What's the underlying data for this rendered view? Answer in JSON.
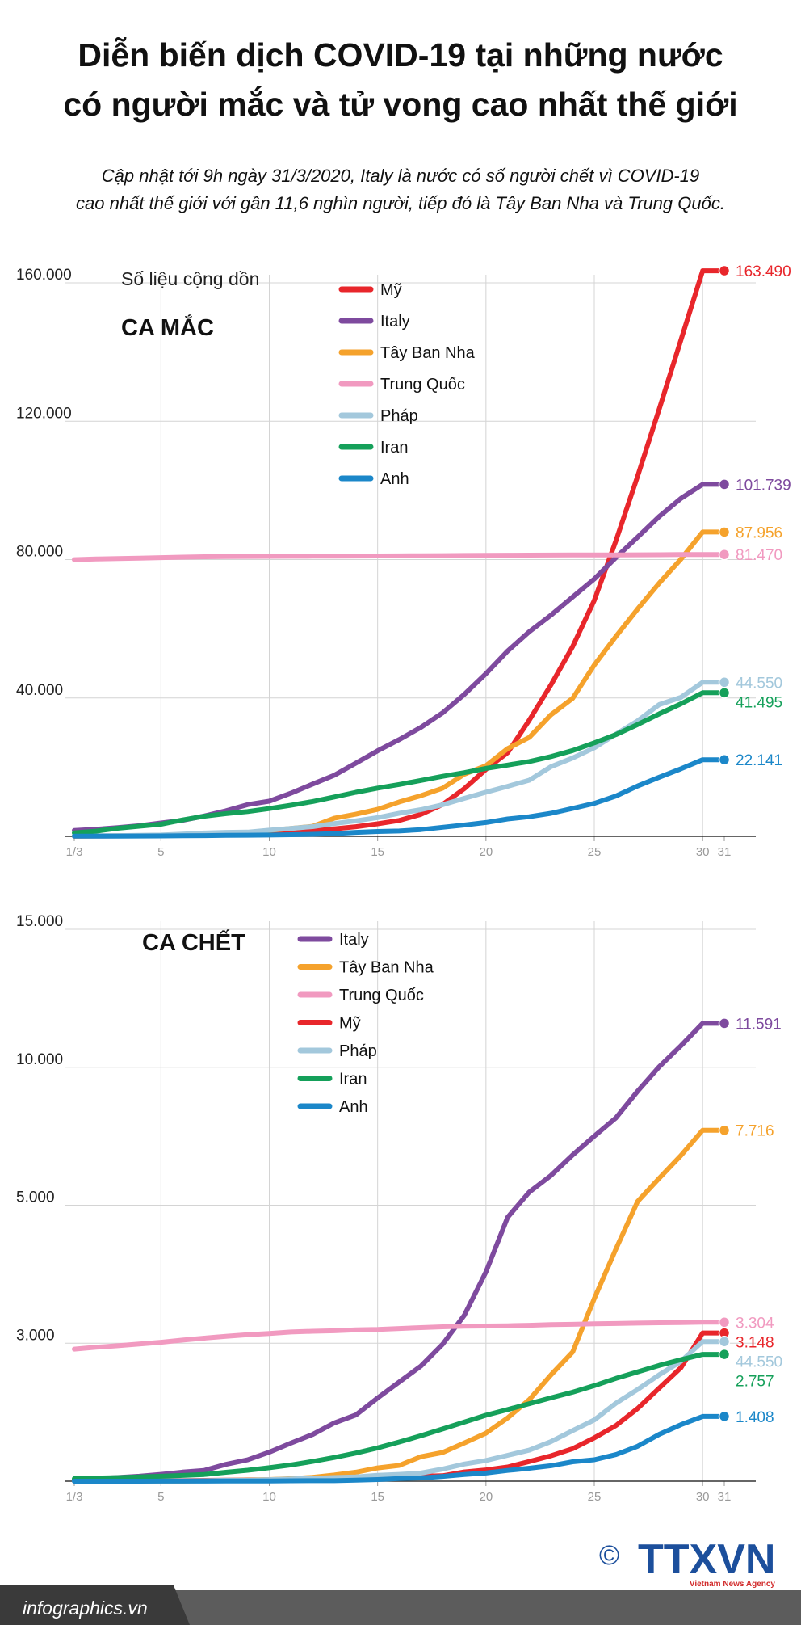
{
  "header": {
    "title_lines": [
      "Diễn biến dịch COVID-19 tại những nước",
      "có người mắc và tử vong cao nhất thế giới"
    ],
    "subtitle_lines": [
      "Cập nhật tới 9h ngày 31/3/2020,  Italy  là nước có số người chết vì COVID-19",
      "cao nhất thế giới với gần 11,6 nghìn người, tiếp đó là Tây Ban Nha và Trung Quốc."
    ]
  },
  "footer": {
    "site": "infographics.vn",
    "copyright": "©",
    "brand": "TTXVN",
    "agency": "Vietnam News Agency"
  },
  "chart_data": [
    {
      "type": "line",
      "note": "Số liệu cộng dồn",
      "title": "CA MẮC",
      "x": [
        1,
        2,
        3,
        4,
        5,
        6,
        7,
        8,
        9,
        10,
        11,
        12,
        13,
        14,
        15,
        16,
        17,
        18,
        19,
        20,
        21,
        22,
        23,
        24,
        25,
        26,
        27,
        28,
        29,
        30,
        31
      ],
      "xlim": [
        1,
        31
      ],
      "xticks": [
        {
          "value": 1,
          "label": "1/3"
        },
        5,
        10,
        15,
        20,
        25,
        30,
        31
      ],
      "ylim": [
        0,
        160000
      ],
      "yticks": [
        {
          "value": 40000,
          "label": "40.000"
        },
        {
          "value": 80000,
          "label": "80.000"
        },
        {
          "value": 120000,
          "label": "120.000"
        },
        {
          "value": 160000,
          "label": "160.000"
        }
      ],
      "grid": true,
      "series": [
        {
          "name": "Mỹ",
          "color": "#e8262b",
          "values": [
            75,
            100,
            124,
            158,
            221,
            319,
            435,
            541,
            704,
            994,
            1301,
            1630,
            2183,
            2770,
            3613,
            4596,
            6344,
            9197,
            13779,
            19367,
            24192,
            33592,
            43781,
            54856,
            68211,
            85435,
            104126,
            123578,
            143491,
            163490,
            163490
          ],
          "value_labels": [
            null,
            null,
            null,
            null,
            null,
            null,
            null,
            null,
            null,
            null,
            null,
            null,
            null,
            null,
            null,
            null,
            null,
            null,
            null,
            null,
            null,
            null,
            null,
            null,
            null,
            null,
            null,
            null,
            null,
            null,
            "163.490"
          ]
        },
        {
          "name": "Italy",
          "color": "#7e4a9e",
          "values": [
            1694,
            2036,
            2502,
            3089,
            3858,
            4636,
            5883,
            7375,
            9172,
            10149,
            12462,
            15113,
            17660,
            21157,
            24747,
            27980,
            31506,
            35713,
            41035,
            47021,
            53578,
            59138,
            63927,
            69176,
            74386,
            80589,
            86498,
            92472,
            97689,
            101739,
            101739
          ],
          "value_labels": [
            null,
            null,
            null,
            null,
            null,
            null,
            null,
            null,
            null,
            null,
            null,
            null,
            null,
            null,
            null,
            null,
            null,
            null,
            null,
            null,
            null,
            null,
            null,
            null,
            null,
            null,
            null,
            null,
            null,
            null,
            "101.739"
          ]
        },
        {
          "name": "Tây Ban Nha",
          "color": "#f5a22c",
          "values": [
            84,
            120,
            165,
            222,
            259,
            400,
            500,
            673,
            1073,
            1695,
            2277,
            2900,
            5232,
            6391,
            7798,
            9942,
            11748,
            13910,
            17963,
            20410,
            25374,
            28603,
            35136,
            39885,
            49515,
            57786,
            65719,
            73235,
            80110,
            87956,
            87956
          ],
          "value_labels": [
            null,
            null,
            null,
            null,
            null,
            null,
            null,
            null,
            null,
            null,
            null,
            null,
            null,
            null,
            null,
            null,
            null,
            null,
            null,
            null,
            null,
            null,
            null,
            null,
            null,
            null,
            null,
            null,
            null,
            null,
            "87.956"
          ]
        },
        {
          "name": "Trung Quốc",
          "color": "#f19ac0",
          "values": [
            79968,
            80174,
            80304,
            80422,
            80565,
            80710,
            80813,
            80859,
            80904,
            80924,
            80955,
            80992,
            81003,
            81021,
            81048,
            81077,
            81116,
            81151,
            81190,
            81220,
            81250,
            81280,
            81300,
            81320,
            81340,
            81360,
            81380,
            81400,
            81440,
            81470,
            81470
          ],
          "value_labels": [
            null,
            null,
            null,
            null,
            null,
            null,
            null,
            null,
            null,
            null,
            null,
            null,
            null,
            null,
            null,
            null,
            null,
            null,
            null,
            null,
            null,
            null,
            null,
            null,
            null,
            null,
            null,
            null,
            null,
            null,
            "81.470"
          ]
        },
        {
          "name": "Pháp",
          "color": "#a3c8dc",
          "values": [
            130,
            191,
            204,
            288,
            380,
            656,
            957,
            1136,
            1219,
            1794,
            2293,
            2800,
            3681,
            4496,
            5423,
            6683,
            7715,
            9124,
            10970,
            12758,
            14463,
            16243,
            20123,
            22622,
            25600,
            29551,
            33402,
            38105,
            40174,
            44550,
            44550
          ],
          "value_labels": [
            null,
            null,
            null,
            null,
            null,
            null,
            null,
            null,
            null,
            null,
            null,
            null,
            null,
            null,
            null,
            null,
            null,
            null,
            null,
            null,
            null,
            null,
            null,
            null,
            null,
            null,
            null,
            null,
            null,
            null,
            "44.550"
          ]
        },
        {
          "name": "Iran",
          "color": "#15a05a",
          "values": [
            978,
            1501,
            2336,
            2922,
            3513,
            4747,
            5823,
            6566,
            7161,
            8042,
            9000,
            10075,
            11364,
            12729,
            13938,
            14991,
            16169,
            17361,
            18407,
            19644,
            20610,
            21638,
            23049,
            24811,
            27017,
            29406,
            32332,
            35408,
            38309,
            41495,
            41495
          ],
          "value_labels": [
            null,
            null,
            null,
            null,
            null,
            null,
            null,
            null,
            null,
            null,
            null,
            null,
            null,
            null,
            null,
            null,
            null,
            null,
            null,
            null,
            null,
            null,
            null,
            null,
            null,
            null,
            null,
            null,
            null,
            null,
            "41.495"
          ]
        },
        {
          "name": "Anh",
          "color": "#1b87c9",
          "values": [
            36,
            40,
            51,
            85,
            115,
            163,
            206,
            273,
            321,
            382,
            456,
            590,
            798,
            1140,
            1391,
            1543,
            1950,
            2626,
            3269,
            3983,
            5018,
            5683,
            6650,
            8077,
            9529,
            11658,
            14543,
            17089,
            19522,
            22141,
            22141
          ],
          "value_labels": [
            null,
            null,
            null,
            null,
            null,
            null,
            null,
            null,
            null,
            null,
            null,
            null,
            null,
            null,
            null,
            null,
            null,
            null,
            null,
            null,
            null,
            null,
            null,
            null,
            null,
            null,
            null,
            null,
            null,
            null,
            "22.141"
          ]
        }
      ]
    },
    {
      "type": "line",
      "title": "CA CHẾT",
      "x": [
        1,
        2,
        3,
        4,
        5,
        6,
        7,
        8,
        9,
        10,
        11,
        12,
        13,
        14,
        15,
        16,
        17,
        18,
        19,
        20,
        21,
        22,
        23,
        24,
        25,
        26,
        27,
        28,
        29,
        30,
        31
      ],
      "xlim": [
        1,
        31
      ],
      "xticks": [
        {
          "value": 1,
          "label": "1/3"
        },
        5,
        10,
        15,
        20,
        25,
        30,
        31
      ],
      "ylim": [
        0,
        15000
      ],
      "yticks": [
        {
          "value": 3000,
          "label": "3.000"
        },
        {
          "value": 5000,
          "label": "5.000"
        },
        {
          "value": 10000,
          "label": "10.000"
        },
        {
          "value": 15000,
          "label": "15.000"
        }
      ],
      "grid": true,
      "annotations": [
        "44.550"
      ],
      "series": [
        {
          "name": "Italy",
          "color": "#7e4a9e",
          "values": [
            34,
            52,
            79,
            107,
            148,
            197,
            233,
            366,
            463,
            631,
            827,
            1016,
            1266,
            1441,
            1809,
            2158,
            2503,
            2978,
            3405,
            4032,
            4825,
            5476,
            6077,
            6820,
            7503,
            8165,
            9134,
            10023,
            10779,
            11591,
            11591
          ],
          "value_labels": [
            null,
            null,
            null,
            null,
            null,
            null,
            null,
            null,
            null,
            null,
            null,
            null,
            null,
            null,
            null,
            null,
            null,
            null,
            null,
            null,
            null,
            null,
            null,
            null,
            null,
            null,
            null,
            null,
            null,
            null,
            "11.591"
          ]
        },
        {
          "name": "Tây Ban Nha",
          "color": "#f5a22c",
          "values": [
            0,
            0,
            1,
            2,
            3,
            5,
            10,
            17,
            28,
            35,
            54,
            84,
            133,
            195,
            289,
            342,
            533,
            623,
            830,
            1043,
            1375,
            1772,
            2311,
            2808,
            3647,
            4365,
            5138,
            5982,
            6803,
            7716,
            7716
          ],
          "value_labels": [
            null,
            null,
            null,
            null,
            null,
            null,
            null,
            null,
            null,
            null,
            null,
            null,
            null,
            null,
            null,
            null,
            null,
            null,
            null,
            null,
            null,
            null,
            null,
            null,
            null,
            null,
            null,
            null,
            null,
            null,
            "7.716"
          ]
        },
        {
          "name": "Trung Quốc",
          "color": "#f19ac0",
          "values": [
            2870,
            2912,
            2945,
            2981,
            3013,
            3045,
            3073,
            3100,
            3123,
            3140,
            3162,
            3173,
            3180,
            3194,
            3199,
            3213,
            3226,
            3237,
            3245,
            3249,
            3253,
            3259,
            3270,
            3274,
            3281,
            3285,
            3291,
            3296,
            3299,
            3304,
            3304
          ],
          "value_labels": [
            null,
            null,
            null,
            null,
            null,
            null,
            null,
            null,
            null,
            null,
            null,
            null,
            null,
            null,
            null,
            null,
            null,
            null,
            null,
            null,
            null,
            null,
            null,
            null,
            null,
            null,
            null,
            null,
            null,
            null,
            "3.304"
          ]
        },
        {
          "name": "Mỹ",
          "color": "#e8262b",
          "values": [
            1,
            6,
            7,
            11,
            12,
            14,
            17,
            21,
            22,
            28,
            36,
            40,
            47,
            54,
            63,
            85,
            108,
            118,
            200,
            244,
            307,
            427,
            552,
            706,
            942,
            1209,
            1581,
            2026,
            2467,
            3148,
            3148
          ],
          "value_labels": [
            null,
            null,
            null,
            null,
            null,
            null,
            null,
            null,
            null,
            null,
            null,
            null,
            null,
            null,
            null,
            null,
            null,
            null,
            null,
            null,
            null,
            null,
            null,
            null,
            null,
            null,
            null,
            null,
            null,
            null,
            "3.148"
          ]
        },
        {
          "name": "Pháp",
          "color": "#a3c8dc",
          "values": [
            2,
            3,
            4,
            4,
            6,
            9,
            11,
            19,
            19,
            33,
            48,
            61,
            79,
            91,
            127,
            148,
            175,
            264,
            372,
            450,
            562,
            674,
            860,
            1100,
            1331,
            1696,
            1995,
            2314,
            2606,
            3024,
            3024
          ]
        },
        {
          "name": "Iran",
          "color": "#15a05a",
          "values": [
            54,
            66,
            77,
            92,
            107,
            124,
            145,
            194,
            237,
            291,
            354,
            429,
            514,
            611,
            724,
            853,
            988,
            1135,
            1284,
            1433,
            1556,
            1685,
            1812,
            1934,
            2077,
            2234,
            2378,
            2517,
            2640,
            2757,
            2757
          ],
          "value_labels": [
            null,
            null,
            null,
            null,
            null,
            null,
            null,
            null,
            null,
            null,
            null,
            null,
            null,
            null,
            null,
            null,
            null,
            null,
            null,
            null,
            null,
            null,
            null,
            null,
            null,
            null,
            null,
            null,
            null,
            null,
            "2.757"
          ]
        },
        {
          "name": "Anh",
          "color": "#1b87c9",
          "values": [
            0,
            0,
            0,
            0,
            1,
            2,
            2,
            3,
            4,
            6,
            8,
            10,
            10,
            21,
            35,
            56,
            71,
            104,
            144,
            177,
            233,
            281,
            335,
            422,
            465,
            578,
            759,
            1019,
            1228,
            1408,
            1408
          ],
          "value_labels": [
            null,
            null,
            null,
            null,
            null,
            null,
            null,
            null,
            null,
            null,
            null,
            null,
            null,
            null,
            null,
            null,
            null,
            null,
            null,
            null,
            null,
            null,
            null,
            null,
            null,
            null,
            null,
            null,
            null,
            null,
            "1.408"
          ]
        }
      ]
    }
  ]
}
